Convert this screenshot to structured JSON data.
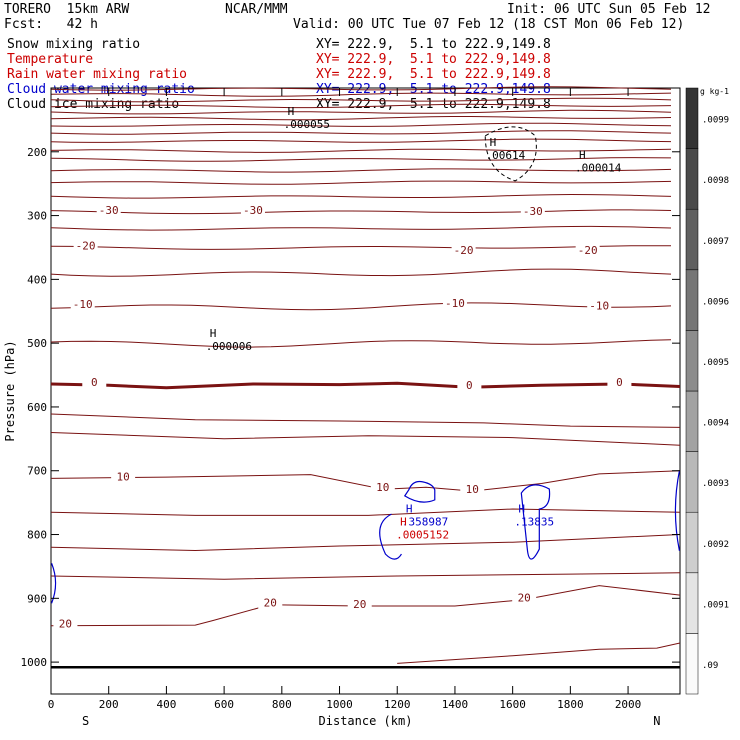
{
  "header": {
    "model": "TORERO  15km ARW",
    "center": "NCAR/MMM",
    "init": "Init: 06 UTC Sun 05 Feb 12",
    "fcst": "Fcst:   42 h",
    "valid": "Valid: 00 UTC Tue 07 Feb 12 (18 CST Mon 06 Feb 12)"
  },
  "legend": [
    {
      "field": "Snow mixing ratio",
      "xy": "XY= 222.9,  5.1 to 222.9,149.8",
      "color": "#000000"
    },
    {
      "field": "Temperature",
      "xy": "XY= 222.9,  5.1 to 222.9,149.8",
      "color": "#cc0000"
    },
    {
      "field": "Rain water mixing ratio",
      "xy": "XY= 222.9,  5.1 to 222.9,149.8",
      "color": "#cc0000"
    },
    {
      "field": "Cloud water mixing ratio",
      "xy": "XY= 222.9,  5.1 to 222.9,149.8",
      "color": "#0000cc"
    },
    {
      "field": "Cloud ice mixing ratio",
      "xy": "XY= 222.9,  5.1 to 222.9,149.8",
      "color": "#000000"
    }
  ],
  "chart_data": {
    "type": "cross-section contour",
    "xlabel": "Distance (km)",
    "ylabel": "Pressure (hPa)",
    "xlim": [
      0,
      2180
    ],
    "ylim": [
      1050,
      100
    ],
    "x_ticks": [
      0,
      200,
      400,
      600,
      800,
      1000,
      1200,
      1400,
      1600,
      1800,
      2000
    ],
    "y_ticks": [
      200,
      300,
      400,
      500,
      600,
      700,
      800,
      900,
      1000
    ],
    "end_labels": {
      "left": "S",
      "right": "N"
    },
    "temperature_contour_labels": [
      {
        "label": "-30",
        "points": [
          [
            200,
            294
          ],
          [
            700,
            294
          ],
          [
            1670,
            296
          ]
        ]
      },
      {
        "label": "-20",
        "points": [
          [
            120,
            350
          ],
          [
            1430,
            357
          ],
          [
            1860,
            357
          ]
        ]
      },
      {
        "label": "-10",
        "points": [
          [
            110,
            442
          ],
          [
            1400,
            440
          ],
          [
            1900,
            444
          ]
        ]
      },
      {
        "label": "0",
        "points": [
          [
            150,
            564
          ],
          [
            1450,
            569
          ],
          [
            1970,
            564
          ]
        ]
      },
      {
        "label": "10",
        "points": [
          [
            250,
            712
          ],
          [
            1150,
            729
          ],
          [
            1460,
            732
          ]
        ]
      },
      {
        "label": "20",
        "points": [
          [
            50,
            943
          ],
          [
            760,
            910
          ],
          [
            1070,
            912
          ],
          [
            1640,
            902
          ]
        ]
      }
    ],
    "maxima": [
      {
        "marker": "H",
        "value": ".000055",
        "field": "Cloud ice mixing ratio",
        "x": 820,
        "p": 152,
        "color": "#000000"
      },
      {
        "marker": "H",
        "value": ".00614",
        "field": "Cloud ice mixing ratio",
        "x": 1520,
        "p": 200,
        "color": "#000000"
      },
      {
        "marker": "H",
        "value": ".000014",
        "field": "Cloud ice mixing ratio",
        "x": 1830,
        "p": 220,
        "color": "#000000"
      },
      {
        "marker": "H",
        "value": ".000006",
        "field": "Snow mixing ratio",
        "x": 550,
        "p": 500,
        "color": "#000000"
      },
      {
        "marker": "H",
        "value": ".358987",
        "field": "Cloud water mixing ratio",
        "x": 1230,
        "p": 775,
        "color": "#0000cc"
      },
      {
        "marker": "H",
        "value": ".13835",
        "field": "Cloud water mixing ratio",
        "x": 1620,
        "p": 775,
        "color": "#0000cc"
      },
      {
        "marker": "H",
        "value": ".0005152",
        "field": "Rain water mixing ratio",
        "x": 1210,
        "p": 795,
        "color": "#cc0000"
      }
    ],
    "colorbar": {
      "unit": "g kg-1",
      "levels": [
        ".09",
        ".0091",
        ".0092",
        ".0093",
        ".0094",
        ".0095",
        ".0096",
        ".0097",
        ".0098",
        ".0099"
      ]
    }
  }
}
